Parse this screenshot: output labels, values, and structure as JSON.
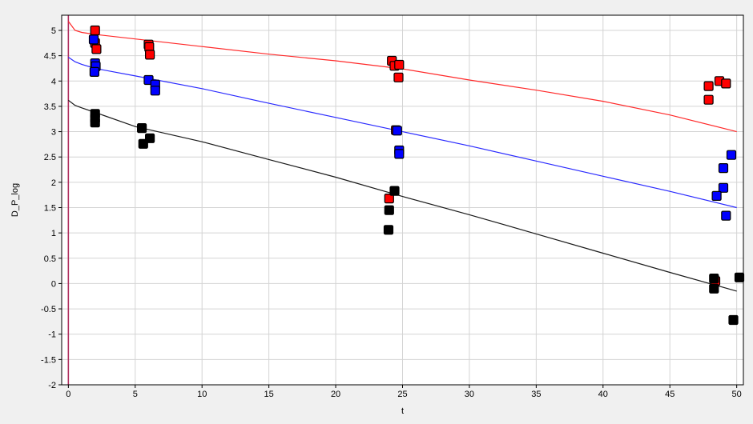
{
  "chart_data": {
    "type": "scatter",
    "title": "",
    "xlabel": "t",
    "ylabel": "D_P_log",
    "xlim": [
      -0.5,
      50.5
    ],
    "ylim": [
      -2,
      5.3
    ],
    "xticks": [
      0,
      5,
      10,
      15,
      20,
      25,
      30,
      35,
      40,
      45,
      50
    ],
    "yticks": [
      -2,
      -1.5,
      -1,
      -0.5,
      0,
      0.5,
      1,
      1.5,
      2,
      2.5,
      3,
      3.5,
      4,
      4.5,
      5
    ],
    "grid": true,
    "background": "#f0f0f0",
    "plot_background": "#ffffff",
    "grid_color": "#d4d4d4",
    "vertical_line": {
      "x": 0,
      "color": "#b03060"
    },
    "lines": [
      {
        "color": "#ff2a2a",
        "x": [
          0,
          0.5,
          1,
          2,
          5,
          10,
          15,
          20,
          25,
          30,
          35,
          40,
          45,
          50
        ],
        "y": [
          5.18,
          5.0,
          4.96,
          4.92,
          4.83,
          4.68,
          4.53,
          4.4,
          4.24,
          4.02,
          3.82,
          3.6,
          3.33,
          3.0
        ]
      },
      {
        "color": "#2a2aff",
        "x": [
          0,
          0.5,
          1,
          2,
          5,
          10,
          15,
          20,
          25,
          30,
          35,
          40,
          45,
          50
        ],
        "y": [
          4.47,
          4.38,
          4.33,
          4.25,
          4.1,
          3.85,
          3.56,
          3.28,
          3.0,
          2.72,
          2.42,
          2.12,
          1.82,
          1.5
        ]
      },
      {
        "color": "#1a1a1a",
        "x": [
          0,
          0.5,
          1,
          2,
          5,
          10,
          15,
          20,
          25,
          30,
          35,
          40,
          45,
          50
        ],
        "y": [
          3.62,
          3.52,
          3.47,
          3.38,
          3.1,
          2.8,
          2.45,
          2.1,
          1.72,
          1.36,
          0.98,
          0.6,
          0.22,
          -0.15
        ]
      }
    ],
    "series": [
      {
        "color": "#ff0000",
        "points": [
          [
            2,
            5.0
          ],
          [
            2.0,
            4.75
          ],
          [
            2.1,
            4.63
          ],
          [
            6.0,
            4.72
          ],
          [
            6.05,
            4.67
          ],
          [
            6.1,
            4.52
          ],
          [
            24.2,
            4.4
          ],
          [
            24.4,
            4.3
          ],
          [
            24.75,
            4.32
          ],
          [
            24.7,
            4.07
          ],
          [
            24.5,
            3.03
          ],
          [
            24.0,
            1.68
          ],
          [
            47.9,
            3.9
          ],
          [
            48.7,
            4.0
          ],
          [
            49.2,
            3.95
          ],
          [
            47.9,
            3.63
          ],
          [
            48.4,
            0.05
          ]
        ]
      },
      {
        "color": "#0000ff",
        "points": [
          [
            1.9,
            4.82
          ],
          [
            2.0,
            4.35
          ],
          [
            2.05,
            4.29
          ],
          [
            1.95,
            4.18
          ],
          [
            6.0,
            4.02
          ],
          [
            6.5,
            3.93
          ],
          [
            6.5,
            3.81
          ],
          [
            24.6,
            3.02
          ],
          [
            24.75,
            2.63
          ],
          [
            24.75,
            2.56
          ],
          [
            49.6,
            2.54
          ],
          [
            49.0,
            2.28
          ],
          [
            49.0,
            1.89
          ],
          [
            48.5,
            1.73
          ],
          [
            49.2,
            1.34
          ]
        ]
      },
      {
        "color": "#000000",
        "points": [
          [
            2.0,
            3.35
          ],
          [
            2.0,
            3.26
          ],
          [
            2.0,
            3.18
          ],
          [
            5.5,
            3.07
          ],
          [
            5.6,
            2.76
          ],
          [
            6.1,
            2.87
          ],
          [
            24.4,
            1.83
          ],
          [
            24.0,
            1.45
          ],
          [
            23.95,
            1.06
          ],
          [
            48.3,
            0.1
          ],
          [
            48.3,
            -0.1
          ],
          [
            50.2,
            0.12
          ],
          [
            49.75,
            -0.72
          ]
        ]
      }
    ]
  }
}
